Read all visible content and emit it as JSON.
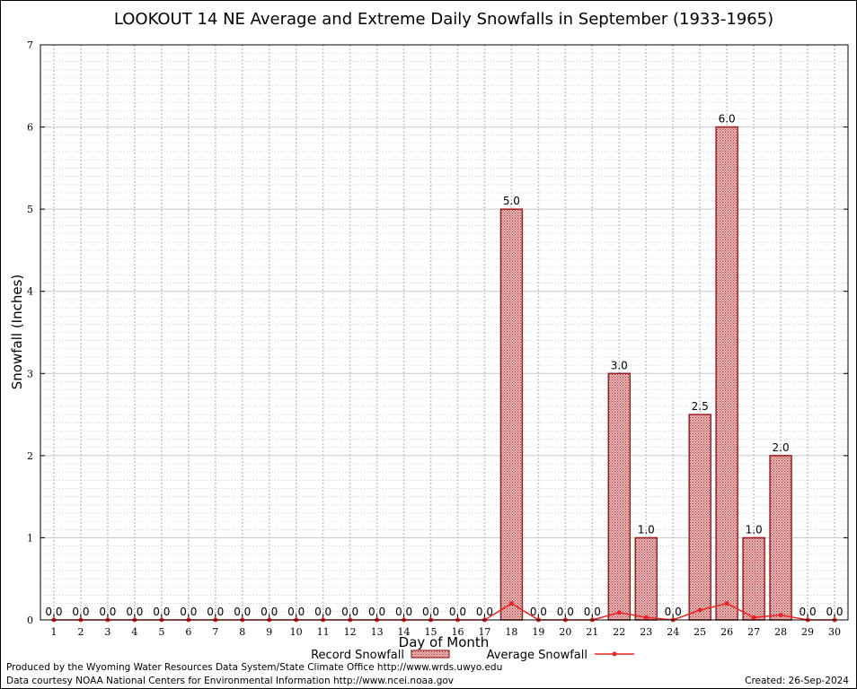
{
  "chart_data": {
    "type": "bar",
    "title": "LOOKOUT 14 NE Average and Extreme Daily Snowfalls in September (1933-1965)",
    "xlabel": "Day of Month",
    "ylabel": "Snowfall (Inches)",
    "ylim": [
      0,
      7
    ],
    "yticks": [
      "0",
      "1",
      "2",
      "3",
      "4",
      "5",
      "6",
      "7"
    ],
    "categories": [
      "1",
      "2",
      "3",
      "4",
      "5",
      "6",
      "7",
      "8",
      "9",
      "10",
      "11",
      "12",
      "13",
      "14",
      "15",
      "16",
      "17",
      "18",
      "19",
      "20",
      "21",
      "22",
      "23",
      "24",
      "25",
      "26",
      "27",
      "28",
      "29",
      "30"
    ],
    "series": [
      {
        "name": "Record Snowfall",
        "type": "bar",
        "color": "#cc2222",
        "values": [
          0,
          0,
          0,
          0,
          0,
          0,
          0,
          0,
          0,
          0,
          0,
          0,
          0,
          0,
          0,
          0,
          0,
          5.0,
          0,
          0,
          0,
          3.0,
          1.0,
          0,
          2.5,
          6.0,
          1.0,
          2.0,
          0,
          0
        ],
        "labels": [
          "0.0",
          "0.0",
          "0.0",
          "0.0",
          "0.0",
          "0.0",
          "0.0",
          "0.0",
          "0.0",
          "0.0",
          "0.0",
          "0.0",
          "0.0",
          "0.0",
          "0.0",
          "0.0",
          "0.0",
          "5.0",
          "0.0",
          "0.0",
          "0.0",
          "3.0",
          "1.0",
          "0.0",
          "2.5",
          "6.0",
          "1.0",
          "2.0",
          "0.0",
          "0.0"
        ]
      },
      {
        "name": "Average Snowfall",
        "type": "line",
        "color": "#ee2222",
        "values": [
          0,
          0,
          0,
          0,
          0,
          0,
          0,
          0,
          0,
          0,
          0,
          0,
          0,
          0,
          0,
          0,
          0,
          0.2,
          0,
          0,
          0,
          0.09,
          0.03,
          0,
          0.12,
          0.2,
          0.03,
          0.06,
          0,
          0
        ]
      }
    ],
    "grid": true,
    "legend_position": "bottom-center"
  },
  "footer": {
    "produced_by": "Produced by the Wyoming Water Resources Data System/State Climate Office http://www.wrds.uwyo.edu",
    "data_courtesy": "Data courtesy NOAA National Centers for Environmental Information http://www.ncei.noaa.gov",
    "created": "Created: 26-Sep-2024"
  }
}
